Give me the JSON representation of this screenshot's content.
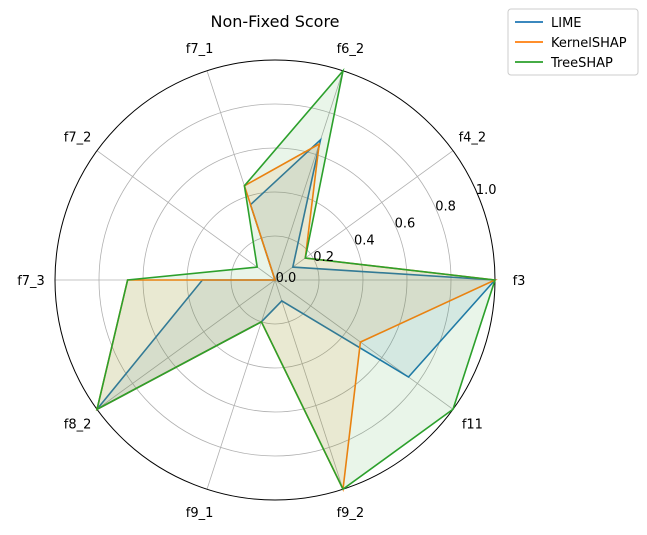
{
  "chart_data": {
    "type": "radar",
    "title": "Non-Fixed Score",
    "categories": [
      "f3",
      "f4_2",
      "f6_2",
      "f7_1",
      "f7_2",
      "f7_3",
      "f8_2",
      "f9_1",
      "f9_2",
      "f11"
    ],
    "rlim": [
      0,
      1.0
    ],
    "rticks": [
      "0.0",
      "0.2",
      "0.4",
      "0.6",
      "0.8",
      "1.0"
    ],
    "grid": true,
    "legend_position": "top-right",
    "series": [
      {
        "name": "LIME",
        "color": "#1f77b4",
        "values": [
          1.0,
          0.1,
          0.67,
          0.36,
          0.0,
          0.33,
          1.0,
          0.2,
          0.1,
          0.75
        ]
      },
      {
        "name": "KernelSHAP",
        "color": "#ff7f0e",
        "values": [
          1.0,
          0.17,
          0.65,
          0.45,
          0.0,
          0.67,
          1.0,
          0.2,
          1.0,
          0.48
        ]
      },
      {
        "name": "TreeSHAP",
        "color": "#2ca02c",
        "values": [
          1.0,
          0.17,
          1.0,
          0.45,
          0.1,
          0.67,
          1.0,
          0.2,
          1.0,
          1.0
        ]
      }
    ]
  }
}
